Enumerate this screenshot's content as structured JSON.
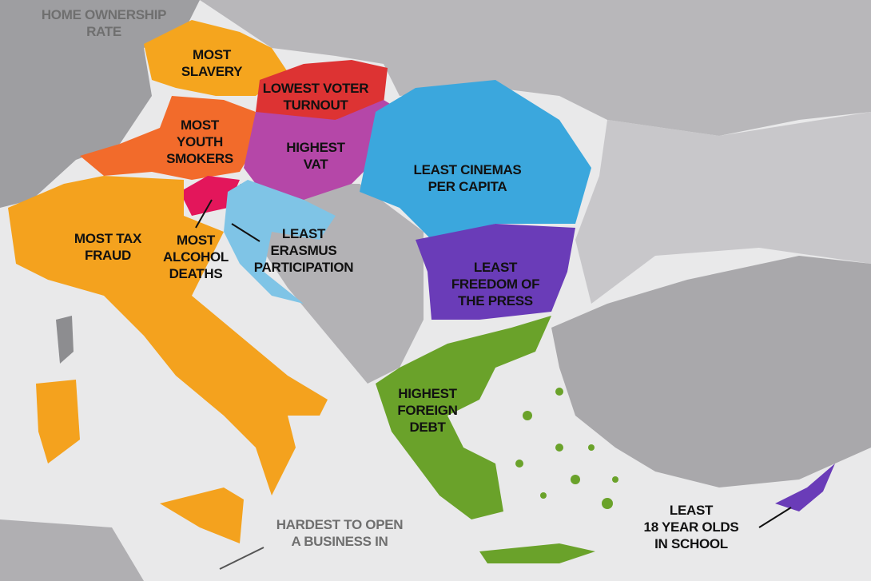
{
  "colors": {
    "sea": "#e9e9ea",
    "land": "#a9a8ab",
    "italy": "#f4a21e",
    "austria": "#f26b2b",
    "czech": "#f5a51e",
    "slovakia": "#dd3333",
    "hungary": "#b547a8",
    "slovenia": "#e3165b",
    "croatia": "#7fc4e6",
    "romania": "#3ba7dd",
    "bulgaria": "#6a3cb8",
    "greece": "#6aa22a",
    "cyprus": "#6a3cb8"
  },
  "labels": {
    "home_ownership": [
      "HOME OWNERSHIP",
      "RATE"
    ],
    "czech": [
      "MOST",
      "SLAVERY"
    ],
    "slovakia": [
      "LOWEST VOTER",
      "TURNOUT"
    ],
    "austria": [
      "MOST",
      "YOUTH",
      "SMOKERS"
    ],
    "hungary": [
      "HIGHEST",
      "VAT"
    ],
    "romania": [
      "LEAST CINEMAS",
      "PER CAPITA"
    ],
    "italy": [
      "MOST TAX",
      "FRAUD"
    ],
    "slovenia": [
      "MOST",
      "ALCOHOL",
      "DEATHS"
    ],
    "croatia": [
      "LEAST",
      "ERASMUS",
      "PARTICIPATION"
    ],
    "bulgaria": [
      "LEAST",
      "FREEDOM OF",
      "THE PRESS"
    ],
    "greece": [
      "HIGHEST",
      "FOREIGN",
      "DEBT"
    ],
    "malta": [
      "HARDEST TO OPEN",
      "A BUSINESS IN"
    ],
    "cyprus": [
      "LEAST",
      "18 YEAR OLDS",
      "IN SCHOOL"
    ]
  }
}
